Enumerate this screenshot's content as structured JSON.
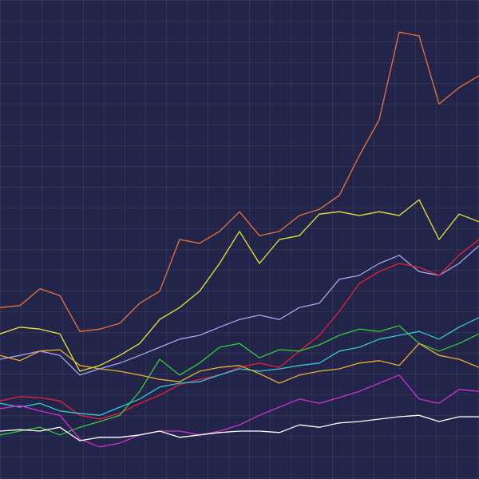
{
  "chart_data": {
    "type": "line",
    "ylim": [
      0,
      100
    ],
    "grid": true,
    "series": [
      {
        "color": "#e8743b",
        "values": [
          35.8,
          36.2,
          39.7,
          38.3,
          30.8,
          31.3,
          32.5,
          36.7,
          39.2,
          50,
          49.2,
          51.7,
          55.8,
          50.8,
          51.7,
          55,
          56.3,
          59.2,
          67.5,
          75,
          93.3,
          92.5,
          78.3,
          81.7,
          84.2
        ]
      },
      {
        "color": "#e8e43a",
        "values": [
          30.3,
          31.7,
          31.3,
          30.3,
          22.5,
          23.7,
          25.8,
          28.3,
          33.3,
          35.8,
          39.2,
          45,
          51.7,
          45,
          50,
          50.8,
          55.3,
          55.8,
          55,
          55.8,
          55,
          58.3,
          50,
          55.3,
          53.7
        ]
      },
      {
        "color": "#a9a6f0",
        "values": [
          25,
          25.8,
          26.7,
          25.8,
          21.7,
          23,
          24.2,
          25.8,
          27.5,
          29.2,
          30,
          31.7,
          33.3,
          34.2,
          33.3,
          35.8,
          36.7,
          41.7,
          42.5,
          45,
          46.7,
          43.3,
          42.5,
          45,
          48.7
        ]
      },
      {
        "color": "#e8203a",
        "values": [
          16.3,
          17.2,
          17,
          16.3,
          13.3,
          12.5,
          13.7,
          15.8,
          17.5,
          19.7,
          20.8,
          21.7,
          23.3,
          24.2,
          23.3,
          26.7,
          30,
          35,
          40.8,
          43.3,
          45,
          44.2,
          42.5,
          46.7,
          50
        ]
      },
      {
        "color": "#33cc33",
        "values": [
          9.2,
          10,
          10.8,
          9.2,
          10.8,
          12,
          13.3,
          18.3,
          25,
          21.7,
          24.2,
          27.5,
          28.3,
          25.3,
          27,
          26.7,
          28,
          30,
          31.3,
          30.8,
          32,
          28.3,
          26.7,
          28.3,
          30.3
        ]
      },
      {
        "color": "#33c9d6",
        "values": [
          15.8,
          15,
          15.8,
          14.2,
          13.7,
          13.3,
          15,
          16.7,
          19.2,
          20,
          20.3,
          21.7,
          23,
          22.5,
          23,
          23.7,
          24.2,
          26.7,
          27.5,
          29.2,
          30,
          30.8,
          29.2,
          31.7,
          33.7
        ]
      },
      {
        "color": "#e8b030",
        "values": [
          25.8,
          24.7,
          26.7,
          27,
          23.7,
          23,
          22.5,
          21.7,
          20.8,
          20.3,
          22.5,
          23.3,
          23.7,
          22,
          20,
          21.7,
          22.5,
          23,
          24.2,
          24.7,
          23.7,
          28.3,
          25.8,
          25,
          23.3
        ]
      },
      {
        "color": "#cc33cc",
        "values": [
          14.7,
          15.3,
          14.2,
          13.3,
          8.3,
          6.7,
          7.5,
          9.2,
          10,
          10,
          9.2,
          10,
          11.3,
          13.3,
          15,
          16.7,
          15.8,
          17,
          18.3,
          20,
          21.7,
          16.7,
          15.8,
          18.7,
          18.3
        ]
      },
      {
        "color": "#ffffff",
        "values": [
          10,
          10.3,
          10,
          10.8,
          8,
          8.7,
          8.7,
          9.2,
          10,
          8.7,
          9.2,
          9.7,
          10,
          10,
          9.7,
          11.3,
          10.8,
          11.7,
          12,
          12.5,
          13,
          13.3,
          12,
          13,
          13
        ]
      }
    ]
  }
}
